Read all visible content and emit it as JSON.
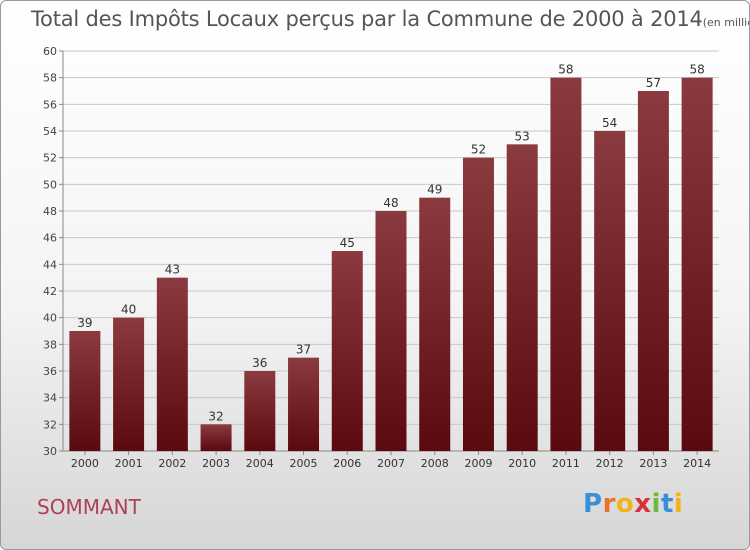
{
  "title": "Total des Impôts Locaux perçus par la Commune de 2000 à 2014",
  "subtitle": "(en milliers d'€)",
  "commune": "SOMMANT",
  "logo": {
    "letters": [
      "P",
      "r",
      "o",
      "x",
      "i",
      "t",
      "i"
    ],
    "colors": [
      "#3a8fd8",
      "#e9712b",
      "#f2b21b",
      "#d8303a",
      "#6fb83b",
      "#3a8fd8",
      "#f2b21b"
    ]
  },
  "colors": {
    "bar_light": "#8b3a3f",
    "bar_dark": "#5a0a0f",
    "grid": "#c8c8c8"
  },
  "chart_data": {
    "type": "bar",
    "categories": [
      "2000",
      "2001",
      "2002",
      "2003",
      "2004",
      "2005",
      "2006",
      "2007",
      "2008",
      "2009",
      "2010",
      "2011",
      "2012",
      "2013",
      "2014"
    ],
    "values": [
      39,
      40,
      43,
      32,
      36,
      37,
      45,
      48,
      49,
      52,
      53,
      58,
      54,
      57,
      58
    ],
    "title": "Total des Impôts Locaux perçus par la Commune de 2000 à 2014",
    "xlabel": "",
    "ylabel": "",
    "ylim": [
      30,
      60
    ],
    "yticks": [
      30,
      32,
      34,
      36,
      38,
      40,
      42,
      44,
      46,
      48,
      50,
      52,
      54,
      56,
      58,
      60
    ],
    "grid": true
  }
}
